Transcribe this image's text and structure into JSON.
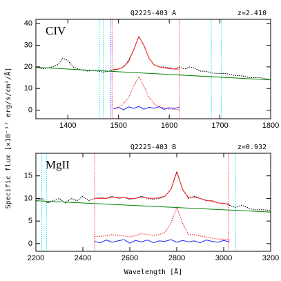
{
  "ylabel": "Specific flux [×10⁻¹⁷ erg/s/cm²/Å]",
  "chart_data": [
    {
      "type": "line",
      "title": "Q2225-403 A",
      "annotation": "z=2.410",
      "label": "CIV",
      "xlim": [
        1337,
        1800
      ],
      "xticks": [
        1400,
        1500,
        1600,
        1700,
        1800
      ],
      "ylim": [
        -4,
        42
      ],
      "yticks": [
        0,
        10,
        20,
        30,
        40
      ],
      "vlines": [
        {
          "x": 1462,
          "color": "#00e5ee"
        },
        {
          "x": 1470,
          "color": "#00e5ee"
        },
        {
          "x": 1485,
          "color": "#4040ff"
        },
        {
          "x": 1488,
          "color": "#ff3030"
        },
        {
          "x": 1620,
          "color": "#ff3030"
        },
        {
          "x": 1683,
          "color": "#00e5ee"
        },
        {
          "x": 1703,
          "color": "#00e5ee"
        }
      ],
      "series": [
        {
          "color": "#000000",
          "style": "dotted",
          "x": [
            1340,
            1350,
            1360,
            1370,
            1380,
            1390,
            1400,
            1410,
            1420,
            1430,
            1440,
            1450,
            1460,
            1470,
            1480,
            1490,
            1500,
            1510,
            1520,
            1530,
            1540,
            1550,
            1560,
            1570,
            1580,
            1590,
            1600,
            1610,
            1620,
            1630,
            1640,
            1650,
            1660,
            1670,
            1680,
            1690,
            1700,
            1710,
            1720,
            1730,
            1740,
            1750,
            1760,
            1770,
            1780,
            1790,
            1800
          ],
          "values": [
            20,
            19,
            19.5,
            20,
            21,
            24,
            23,
            20,
            19,
            18.5,
            18,
            18.5,
            18,
            17.5,
            18,
            18.5,
            19,
            20,
            23,
            28,
            34,
            30,
            24,
            21,
            20,
            20,
            19.5,
            19,
            20,
            19,
            20,
            19.5,
            18,
            18,
            17.5,
            17,
            17,
            17,
            16.5,
            16,
            16,
            15.5,
            15,
            15,
            15,
            14.5,
            14
          ]
        },
        {
          "color": "#ff2020",
          "style": "solid",
          "x": [
            1490,
            1500,
            1510,
            1520,
            1530,
            1540,
            1550,
            1560,
            1570,
            1580,
            1590,
            1600,
            1610,
            1620
          ],
          "values": [
            18.8,
            19,
            20,
            22.5,
            28,
            34,
            30,
            24,
            21,
            20,
            19.5,
            19.2,
            19,
            19
          ]
        },
        {
          "color": "#ff2020",
          "style": "dotted",
          "x": [
            1490,
            1500,
            1510,
            1520,
            1530,
            1540,
            1550,
            1560,
            1570,
            1580,
            1590,
            1600,
            1610,
            1620
          ],
          "values": [
            0.5,
            1.5,
            3,
            6,
            11,
            15.5,
            11,
            6,
            3,
            1.5,
            1,
            0.5,
            0.3,
            0.2
          ]
        },
        {
          "color": "#2020ff",
          "style": "solid",
          "x": [
            1490,
            1500,
            1510,
            1520,
            1530,
            1540,
            1550,
            1560,
            1570,
            1580,
            1590,
            1600,
            1610,
            1620
          ],
          "values": [
            0.5,
            1.2,
            0.2,
            1.5,
            0.8,
            1.7,
            0.4,
            1.3,
            0.9,
            1.6,
            0.3,
            1.1,
            0.7,
            1.4
          ]
        },
        {
          "color": "#008000",
          "style": "solid",
          "x": [
            1337,
            1800
          ],
          "values": [
            19.8,
            14
          ]
        }
      ]
    },
    {
      "type": "line",
      "title": "Q2225-403 B",
      "annotation": "z=0.932",
      "label": "MgII",
      "xlabel": "Wavelength [Å]",
      "xlim": [
        2200,
        3200
      ],
      "xticks": [
        2200,
        2400,
        2600,
        2800,
        3000,
        3200
      ],
      "ylim": [
        -1.7,
        20
      ],
      "yticks": [
        0,
        5,
        10,
        15
      ],
      "vlines": [
        {
          "x": 2225,
          "color": "#00e5ee"
        },
        {
          "x": 2245,
          "color": "#00e5ee"
        },
        {
          "x": 2450,
          "color": "#ff3030"
        },
        {
          "x": 3020,
          "color": "#ff3030"
        },
        {
          "x": 3050,
          "color": "#00e5ee"
        }
      ],
      "series": [
        {
          "color": "#000000",
          "style": "dotted",
          "x": [
            2200,
            2225,
            2250,
            2275,
            2300,
            2325,
            2350,
            2375,
            2400,
            2425,
            2450,
            2475,
            2500,
            2525,
            2550,
            2575,
            2600,
            2625,
            2650,
            2675,
            2700,
            2725,
            2750,
            2775,
            2800,
            2825,
            2850,
            2875,
            2900,
            2925,
            2950,
            2975,
            3000,
            3025,
            3050,
            3075,
            3100,
            3125,
            3150,
            3175,
            3200
          ],
          "values": [
            9.5,
            10,
            9,
            9.5,
            10,
            9,
            10,
            9.5,
            10.5,
            9.5,
            10,
            10.2,
            10,
            10.5,
            10,
            10.2,
            9.8,
            10,
            10.5,
            10,
            9.8,
            10,
            10.5,
            12,
            16,
            12,
            10,
            10.5,
            10,
            9.5,
            9.5,
            9,
            9,
            8.5,
            8,
            8.5,
            8,
            7.5,
            7.5,
            7.5,
            7.2
          ]
        },
        {
          "color": "#ff2020",
          "style": "solid",
          "x": [
            2450,
            2475,
            2500,
            2525,
            2550,
            2575,
            2600,
            2625,
            2650,
            2675,
            2700,
            2725,
            2750,
            2775,
            2800,
            2825,
            2850,
            2875,
            2900,
            2925,
            2950,
            2975,
            3000,
            3025
          ],
          "values": [
            10,
            10,
            10,
            10.3,
            10.2,
            10.2,
            10,
            10,
            10.3,
            10.1,
            10,
            10.2,
            10.5,
            12,
            15.8,
            12,
            10.2,
            10.3,
            10,
            9.6,
            9.4,
            9,
            8.9,
            8.7
          ]
        },
        {
          "color": "#ff2020",
          "style": "dotted",
          "x": [
            2450,
            2475,
            2500,
            2525,
            2550,
            2575,
            2600,
            2625,
            2650,
            2675,
            2700,
            2725,
            2750,
            2775,
            2800,
            2825,
            2850,
            2875,
            2900,
            2925,
            2950,
            2975,
            3000,
            3025
          ],
          "values": [
            1.5,
            1.6,
            1.8,
            2,
            1.8,
            1.7,
            1.5,
            1.8,
            2.2,
            2,
            1.8,
            2,
            2.5,
            4.5,
            8,
            4.5,
            2,
            2,
            1.7,
            1.5,
            1.2,
            1,
            1,
            0.8
          ]
        },
        {
          "color": "#2020ff",
          "style": "solid",
          "x": [
            2450,
            2475,
            2500,
            2525,
            2550,
            2575,
            2600,
            2625,
            2650,
            2675,
            2700,
            2725,
            2750,
            2775,
            2800,
            2825,
            2850,
            2875,
            2900,
            2925,
            2950,
            2975,
            3000,
            3025
          ],
          "values": [
            0.5,
            0.2,
            0.8,
            0.3,
            0.6,
            0.9,
            0.1,
            0.7,
            0.4,
            0.8,
            0.2,
            0.6,
            0.5,
            0.9,
            0.3,
            0.7,
            0.4,
            0.6,
            0.2,
            0.8,
            0.5,
            0.3,
            0.7,
            0.4
          ]
        },
        {
          "color": "#008000",
          "style": "solid",
          "x": [
            2200,
            3200
          ],
          "values": [
            9.5,
            7
          ]
        }
      ]
    }
  ]
}
